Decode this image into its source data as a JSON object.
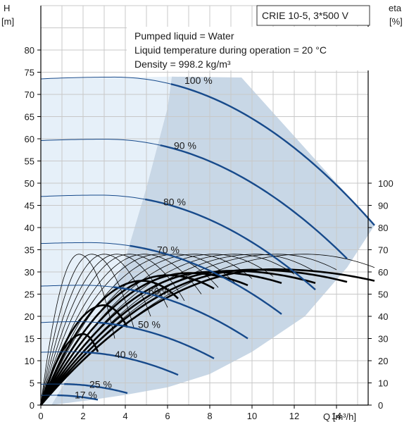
{
  "chart_data": {
    "type": "line",
    "title": "CRIE 10-5, 3*500 V",
    "info_lines": [
      "Pumped liquid = Water",
      "Liquid temperature during operation = 20 °C",
      "Density = 998.2 kg/m³"
    ],
    "x_axis": {
      "label": "Q [m³/h]",
      "range": [
        0,
        15.5
      ],
      "ticks": [
        0,
        2,
        4,
        6,
        8,
        10,
        12,
        14
      ],
      "tick_labels": [
        "0",
        "2",
        "4",
        "6",
        "8",
        "10",
        "12",
        "14"
      ]
    },
    "y_axis_left": {
      "label_line1": "H",
      "label_line2": "[m]",
      "range": [
        0,
        90
      ],
      "ticks": [
        0,
        5,
        10,
        15,
        20,
        25,
        30,
        35,
        40,
        45,
        50,
        55,
        60,
        65,
        70,
        75,
        80
      ],
      "tick_labels": [
        "0",
        "5",
        "10",
        "15",
        "20",
        "25",
        "30",
        "35",
        "40",
        "45",
        "50",
        "55",
        "60",
        "65",
        "70",
        "75",
        "80"
      ]
    },
    "y_axis_right": {
      "label_line1": "eta",
      "label_line2": "[%]",
      "range": [
        0,
        180
      ],
      "ticks": [
        0,
        10,
        20,
        30,
        40,
        50,
        60,
        70,
        80,
        90,
        100
      ],
      "tick_labels": [
        "0",
        "10",
        "20",
        "30",
        "40",
        "50",
        "60",
        "70",
        "80",
        "90",
        "100"
      ]
    },
    "grid": true,
    "colors": {
      "head_curve": "#174a8b",
      "eta_curve": "#000000",
      "operating_range": "#c8d7e6",
      "low_flow_region": "#e6f0f9",
      "grid": "#c8c8c8"
    },
    "operating_range": {
      "min_flow_edge": [
        [
          0.5,
          0
        ],
        [
          2,
          12
        ],
        [
          3,
          22
        ],
        [
          4,
          33
        ],
        [
          5,
          49
        ],
        [
          6,
          67
        ],
        [
          6.2,
          74
        ]
      ],
      "max_flow_edge": [
        [
          15.8,
          40.5
        ],
        [
          14.5,
          31
        ],
        [
          12.5,
          20
        ],
        [
          10,
          12
        ],
        [
          8,
          7
        ],
        [
          6,
          4
        ],
        [
          4,
          2.3
        ],
        [
          2.6,
          1.3
        ]
      ]
    },
    "head_curves": [
      {
        "label": "100 %",
        "label_at": [
          6.8,
          73.2
        ],
        "shutoff_x": 0,
        "start_head": 73.5,
        "peak_x": 3.5,
        "peak_head": 73.9,
        "end_x": 15.8,
        "end_head": 40.5
      },
      {
        "label": "90 %",
        "label_at": [
          6.3,
          58.5
        ],
        "shutoff_x": 0,
        "start_head": 59.6,
        "peak_x": 3.1,
        "peak_head": 59.9,
        "end_x": 14.5,
        "end_head": 33.0
      },
      {
        "label": "80 %",
        "label_at": [
          5.8,
          45.8
        ],
        "shutoff_x": 0,
        "start_head": 47.0,
        "peak_x": 2.8,
        "peak_head": 47.3,
        "end_x": 13.0,
        "end_head": 26.0
      },
      {
        "label": "70 %",
        "label_at": [
          5.5,
          35.0
        ],
        "shutoff_x": 0,
        "start_head": 36.4,
        "peak_x": 2.3,
        "peak_head": 36.6,
        "end_x": 11.4,
        "end_head": 20.5
      },
      {
        "label": "60 %",
        "label_at": [
          5.1,
          25.6
        ],
        "shutoff_x": 0,
        "start_head": 26.8,
        "peak_x": 2.0,
        "peak_head": 27.0,
        "end_x": 9.8,
        "end_head": 15.0
      },
      {
        "label": "50 %",
        "label_at": [
          4.6,
          18.2
        ],
        "shutoff_x": 0,
        "start_head": 18.6,
        "peak_x": 1.7,
        "peak_head": 18.8,
        "end_x": 8.2,
        "end_head": 10.5
      },
      {
        "label": "40 %",
        "label_at": [
          3.5,
          11.4
        ],
        "shutoff_x": 0,
        "start_head": 11.9,
        "peak_x": 1.4,
        "peak_head": 12.0,
        "end_x": 6.5,
        "end_head": 6.8
      },
      {
        "label": "25 %",
        "label_at": [
          2.3,
          4.7
        ],
        "shutoff_x": 0,
        "start_head": 4.7,
        "peak_x": 0.9,
        "peak_head": 4.75,
        "end_x": 4.1,
        "end_head": 2.7
      },
      {
        "label": "17 %",
        "label_at": [
          1.6,
          2.3
        ],
        "shutoff_x": 0,
        "start_head": 2.2,
        "peak_x": 0.6,
        "peak_head": 2.22,
        "end_x": 2.7,
        "end_head": 1.2
      }
    ],
    "eta_curves": [
      {
        "bep_x": 11.0,
        "bep_eta": 61.2,
        "end_x": 15.8,
        "end_eta": 56.0,
        "bold": true
      },
      {
        "bep_x": 10.0,
        "bep_eta": 61.0,
        "end_x": 14.5,
        "end_eta": 55.5,
        "bold": true
      },
      {
        "bep_x": 9.0,
        "bep_eta": 60.5,
        "end_x": 13.0,
        "end_eta": 55.0,
        "bold": true
      },
      {
        "bep_x": 8.0,
        "bep_eta": 60.0,
        "end_x": 11.4,
        "end_eta": 55.0,
        "bold": true
      },
      {
        "bep_x": 7.0,
        "bep_eta": 59.5,
        "end_x": 9.8,
        "end_eta": 54.0,
        "bold": true
      },
      {
        "bep_x": 6.0,
        "bep_eta": 58.5,
        "end_x": 8.2,
        "end_eta": 52.5,
        "bold": true
      },
      {
        "bep_x": 4.8,
        "bep_eta": 56.0,
        "end_x": 6.5,
        "end_eta": 48.0,
        "bold": true
      },
      {
        "bep_x": 3.0,
        "bep_eta": 45.0,
        "end_x": 4.1,
        "end_eta": 35.0,
        "bold": true
      },
      {
        "bep_x": 2.0,
        "bep_eta": 32.0,
        "end_x": 2.7,
        "end_eta": 24.0,
        "bold": true
      },
      {
        "bep_x": 12.5,
        "bep_eta": 68.0,
        "end_x": 15.8,
        "end_eta": 62.0,
        "bold": false
      },
      {
        "bep_x": 11.2,
        "bep_eta": 68.0,
        "end_x": 14.0,
        "end_eta": 61.0,
        "bold": false
      },
      {
        "bep_x": 10.2,
        "bep_eta": 68.0,
        "end_x": 13.0,
        "end_eta": 60.0,
        "bold": false
      },
      {
        "bep_x": 9.2,
        "bep_eta": 68.0,
        "end_x": 12.0,
        "end_eta": 59.0,
        "bold": false
      },
      {
        "bep_x": 8.2,
        "bep_eta": 68.0,
        "end_x": 11.0,
        "end_eta": 58.0,
        "bold": false
      },
      {
        "bep_x": 7.3,
        "bep_eta": 68.0,
        "end_x": 10.0,
        "end_eta": 57.0,
        "bold": false
      },
      {
        "bep_x": 6.4,
        "bep_eta": 68.0,
        "end_x": 9.2,
        "end_eta": 55.0,
        "bold": false
      },
      {
        "bep_x": 5.6,
        "bep_eta": 68.0,
        "end_x": 8.4,
        "end_eta": 53.0,
        "bold": false
      },
      {
        "bep_x": 4.9,
        "bep_eta": 68.0,
        "end_x": 7.6,
        "end_eta": 50.0,
        "bold": false
      },
      {
        "bep_x": 4.2,
        "bep_eta": 68.0,
        "end_x": 6.8,
        "end_eta": 47.0,
        "bold": false
      },
      {
        "bep_x": 3.6,
        "bep_eta": 68.0,
        "end_x": 6.0,
        "end_eta": 44.0,
        "bold": false
      },
      {
        "bep_x": 3.0,
        "bep_eta": 68.0,
        "end_x": 5.2,
        "end_eta": 40.0,
        "bold": false
      },
      {
        "bep_x": 2.4,
        "bep_eta": 68.0,
        "end_x": 4.4,
        "end_eta": 35.0,
        "bold": false
      },
      {
        "bep_x": 1.8,
        "bep_eta": 68.0,
        "end_x": 3.5,
        "end_eta": 30.0,
        "bold": false
      }
    ]
  }
}
